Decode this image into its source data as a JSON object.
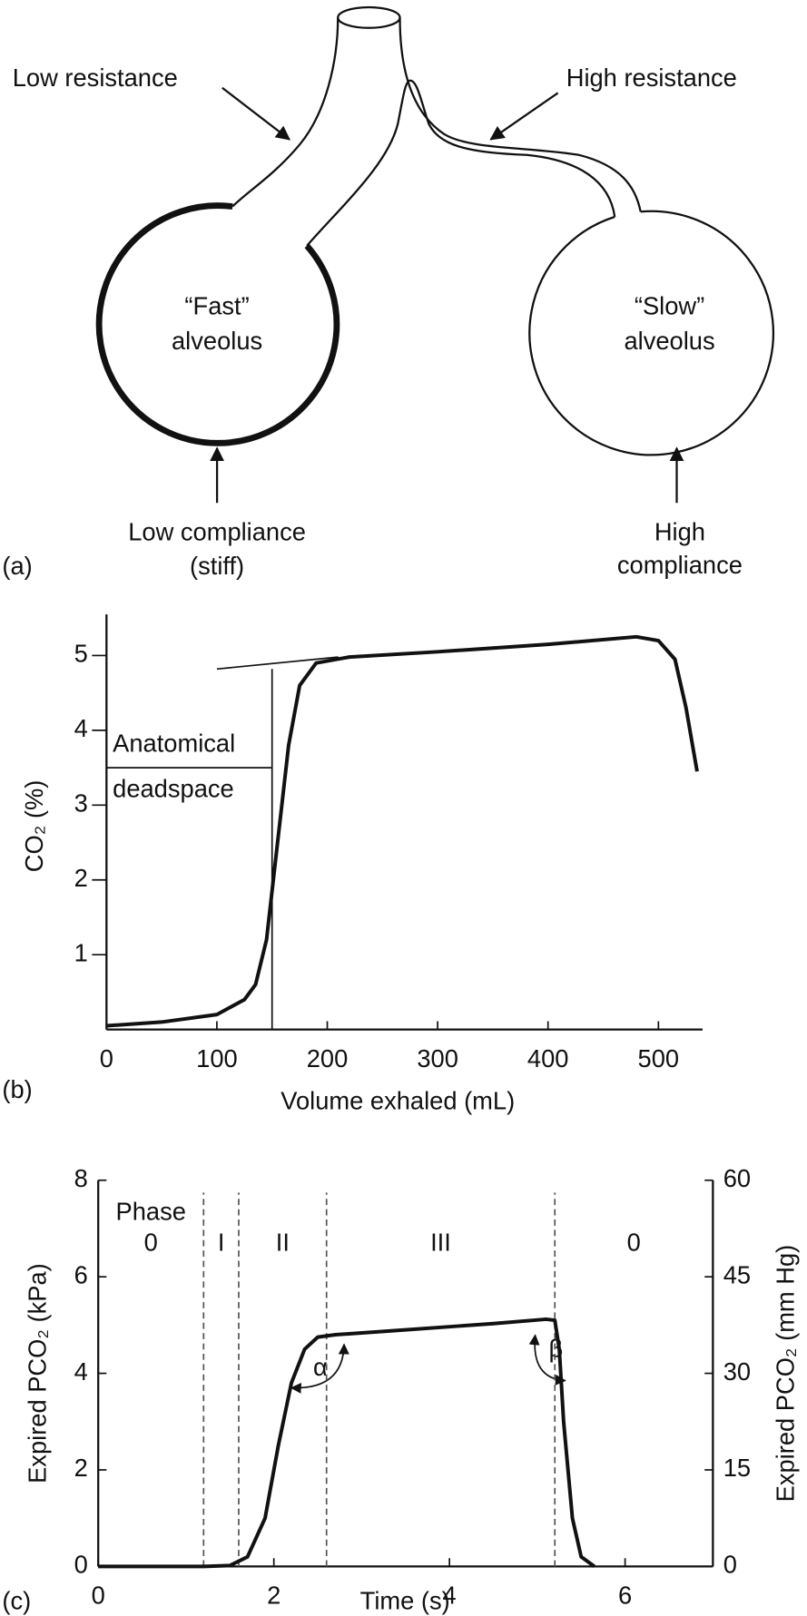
{
  "diagram": {
    "panel_label": "(a)",
    "low_resistance": "Low resistance",
    "high_resistance": "High resistance",
    "fast_alveolus": [
      "“Fast”",
      "alveolus"
    ],
    "slow_alveolus": [
      "“Slow”",
      "alveolus"
    ],
    "low_compliance": [
      "Low compliance",
      "(stiff)"
    ],
    "high_compliance": [
      "High",
      "compliance"
    ]
  },
  "chart_data": [
    {
      "type": "line",
      "panel_label": "(b)",
      "x_label": "Volume exhaled (mL)",
      "y_label": "CO₂ (%)",
      "x": [
        0,
        50,
        100,
        125,
        135,
        145,
        155,
        165,
        175,
        190,
        220,
        300,
        400,
        480,
        500,
        515,
        525,
        535
      ],
      "values": [
        0.05,
        0.1,
        0.2,
        0.4,
        0.6,
        1.2,
        2.5,
        3.8,
        4.6,
        4.9,
        4.98,
        5.05,
        5.15,
        5.25,
        5.2,
        4.95,
        4.3,
        3.45
      ],
      "color": "#111111",
      "xlim": [
        0,
        540
      ],
      "xticks": [
        0,
        100,
        200,
        300,
        400,
        500
      ],
      "ylim": [
        0,
        5.55
      ],
      "yticks": [
        1,
        2,
        3,
        4,
        5
      ],
      "annotation": [
        "Anatomical",
        "deadspace"
      ],
      "deadspace_volume": 150,
      "deadspace_level": 3.5,
      "phase3_fit": {
        "x": [
          100,
          210
        ],
        "y": [
          4.82,
          4.98
        ]
      }
    },
    {
      "type": "line",
      "panel_label": "(c)",
      "x_label": "Time (s)",
      "y_label": "Expired PCO₂ (kPa)",
      "y2_label": "Expired PCO₂ (mm Hg)",
      "x": [
        0,
        1.2,
        1.5,
        1.7,
        1.9,
        2.05,
        2.2,
        2.35,
        2.5,
        2.7,
        3.5,
        4.5,
        5.1,
        5.2,
        5.25,
        5.3,
        5.4,
        5.5,
        5.65
      ],
      "values": [
        0,
        0,
        0.02,
        0.2,
        1,
        2.5,
        3.8,
        4.5,
        4.75,
        4.8,
        4.9,
        5.03,
        5.12,
        5.1,
        4.5,
        3,
        1,
        0.2,
        0
      ],
      "color": "#111111",
      "xlim": [
        0,
        7
      ],
      "xticks": [
        0,
        2,
        4,
        6
      ],
      "ylim": [
        0,
        8
      ],
      "yticks": [
        0,
        2,
        4,
        6,
        8
      ],
      "y2lim": [
        0,
        60
      ],
      "y2ticks": [
        0,
        15,
        30,
        45,
        60
      ],
      "phase_boundaries": [
        1.2,
        1.6,
        2.6,
        5.2
      ],
      "phase_title": "Phase",
      "phase_labels": [
        "0",
        "I",
        "II",
        "III",
        "0"
      ],
      "angle_labels": [
        "α",
        "β"
      ]
    }
  ]
}
